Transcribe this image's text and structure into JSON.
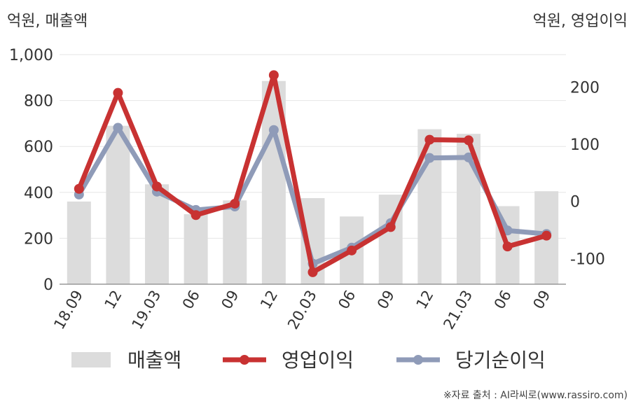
{
  "units": {
    "left": "억원, 매출액",
    "right": "억원, 영업이익"
  },
  "source": "※자료 출처 : AI라씨로(www.rassiro.com)",
  "chart_data": {
    "type": "bar+line",
    "categories": [
      "18.09",
      "12",
      "19.03",
      "06",
      "09",
      "12",
      "20.03",
      "06",
      "09",
      "12",
      "21.03",
      "06",
      "09"
    ],
    "bar_series": {
      "name": "매출액",
      "axis": "left",
      "color": "#dcdcdc",
      "values": [
        360,
        690,
        435,
        305,
        365,
        885,
        375,
        295,
        390,
        675,
        655,
        340,
        405
      ]
    },
    "line_series": [
      {
        "name": "영업이익",
        "axis": "right",
        "color": "#c83232",
        "values": [
          22,
          190,
          26,
          -24,
          -4,
          221,
          -124,
          -86,
          -45,
          108,
          107,
          -79,
          -60
        ]
      },
      {
        "name": "당기순이익",
        "axis": "right",
        "color": "#8f9bb8",
        "values": [
          12,
          129,
          17,
          -15,
          -9,
          125,
          -109,
          -81,
          -38,
          76,
          77,
          -51,
          -57
        ]
      }
    ],
    "y_left": {
      "min": 0,
      "max": 1000,
      "ticks": [
        0,
        200,
        400,
        600,
        800,
        1000
      ],
      "tick_labels": [
        "0",
        "200",
        "400",
        "600",
        "800",
        "1,000"
      ]
    },
    "y_right": {
      "min": -145,
      "max": 257,
      "ticks": [
        -100,
        0,
        100,
        200
      ],
      "tick_labels": [
        "-100",
        "0",
        "100",
        "200"
      ]
    },
    "grid": true,
    "legend": "bottom"
  }
}
